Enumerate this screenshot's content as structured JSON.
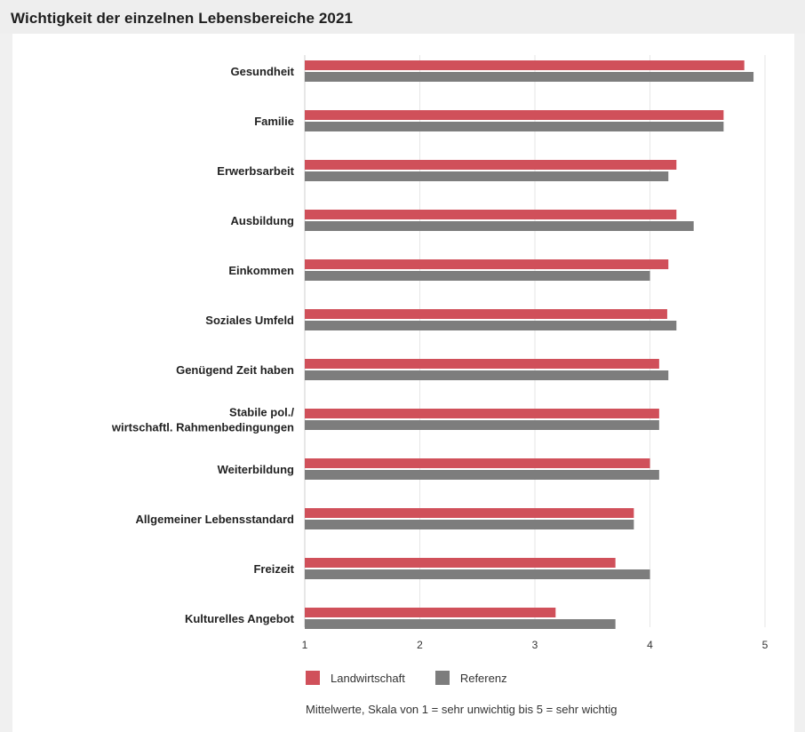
{
  "header": {
    "title": "Wichtigkeit der einzelnen Lebensbereiche 2021"
  },
  "chart_data": {
    "type": "bar",
    "orientation": "horizontal",
    "categories": [
      [
        "Gesundheit"
      ],
      [
        "Familie"
      ],
      [
        "Erwerbsarbeit"
      ],
      [
        "Ausbildung"
      ],
      [
        "Einkommen"
      ],
      [
        "Soziales Umfeld"
      ],
      [
        "Genügend Zeit haben"
      ],
      [
        "Stabile pol./",
        "wirtschaftl. Rahmenbedingungen"
      ],
      [
        "Weiterbildung"
      ],
      [
        "Allgemeiner Lebensstandard"
      ],
      [
        "Freizeit"
      ],
      [
        "Kulturelles Angebot"
      ]
    ],
    "series": [
      {
        "name": "Landwirtschaft",
        "color": "#d0505a",
        "values": [
          4.82,
          4.64,
          4.23,
          4.23,
          4.16,
          4.15,
          4.08,
          4.08,
          4.0,
          3.86,
          3.7,
          3.18
        ]
      },
      {
        "name": "Referenz",
        "color": "#7d7d7d",
        "values": [
          4.9,
          4.64,
          4.16,
          4.38,
          4.0,
          4.23,
          4.16,
          4.08,
          4.08,
          3.86,
          4.0,
          3.7
        ]
      }
    ],
    "xlim": [
      1,
      5
    ],
    "xticks": [
      "1",
      "2",
      "3",
      "4",
      "5"
    ],
    "grid": true,
    "legend_position": "bottom"
  },
  "footnote": "Mittelwerte, Skala von 1 = sehr unwichtig bis 5 = sehr wichtig"
}
